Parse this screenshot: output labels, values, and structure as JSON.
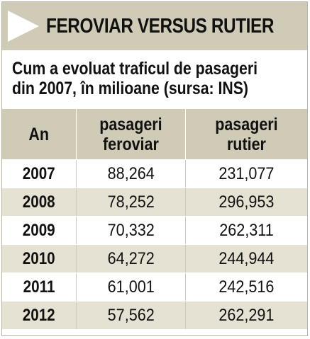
{
  "header": {
    "title": "FEROVIAR VERSUS RUTIER"
  },
  "subtitle": {
    "line1": "Cum a evoluat traficul de pasageri",
    "line2": "din 2007, în milioane (sursa: INS)"
  },
  "table": {
    "columns": {
      "year": "An",
      "rail_line1": "pasageri",
      "rail_line2": "feroviar",
      "road_line1": "pasageri",
      "road_line2": "rutier"
    },
    "rows": [
      {
        "year": "2007",
        "rail": "88,264",
        "road": "231,077"
      },
      {
        "year": "2008",
        "rail": "78,252",
        "road": "296,953"
      },
      {
        "year": "2009",
        "rail": "70,332",
        "road": "262,311"
      },
      {
        "year": "2010",
        "rail": "64,272",
        "road": "244,944"
      },
      {
        "year": "2011",
        "rail": "61,001",
        "road": "242,516"
      },
      {
        "year": "2012",
        "rail": "57,562",
        "road": "262,291"
      }
    ]
  },
  "colors": {
    "header_bg": "#cfcbb7",
    "stripe_bg": "#e6e2d3",
    "text": "#111111"
  }
}
